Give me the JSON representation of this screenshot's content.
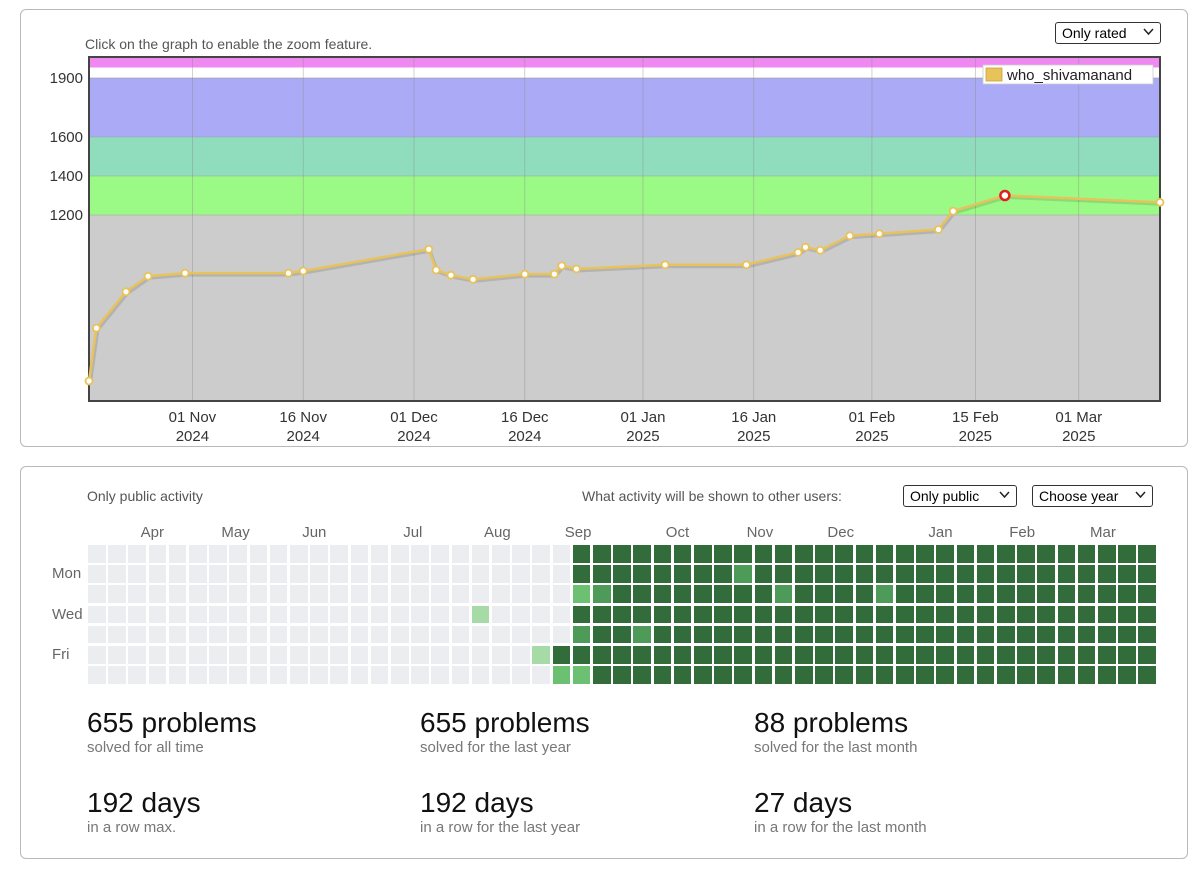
{
  "rating": {
    "hint": "Click on the graph to enable the zoom feature.",
    "filter_select": "Only rated",
    "user": "who_shivamanand",
    "user_color": "#e8c25a"
  },
  "chart_data": {
    "type": "line",
    "series": [
      {
        "name": "who_shivamanand",
        "points": [
          {
            "x": "2024-10-18",
            "y": 400
          },
          {
            "x": "2024-10-19",
            "y": 655
          },
          {
            "x": "2024-10-23",
            "y": 830
          },
          {
            "x": "2024-10-26",
            "y": 905
          },
          {
            "x": "2024-10-31",
            "y": 920
          },
          {
            "x": "2024-11-14",
            "y": 920
          },
          {
            "x": "2024-11-16",
            "y": 930
          },
          {
            "x": "2024-12-03",
            "y": 1035
          },
          {
            "x": "2024-12-04",
            "y": 935
          },
          {
            "x": "2024-12-06",
            "y": 910
          },
          {
            "x": "2024-12-09",
            "y": 890
          },
          {
            "x": "2024-12-16",
            "y": 915
          },
          {
            "x": "2024-12-20",
            "y": 915
          },
          {
            "x": "2024-12-21",
            "y": 955
          },
          {
            "x": "2024-12-23",
            "y": 940
          },
          {
            "x": "2025-01-04",
            "y": 960
          },
          {
            "x": "2025-01-15",
            "y": 960
          },
          {
            "x": "2025-01-22",
            "y": 1020
          },
          {
            "x": "2025-01-23",
            "y": 1045
          },
          {
            "x": "2025-01-25",
            "y": 1030
          },
          {
            "x": "2025-01-29",
            "y": 1100
          },
          {
            "x": "2025-02-02",
            "y": 1110
          },
          {
            "x": "2025-02-10",
            "y": 1130
          },
          {
            "x": "2025-02-12",
            "y": 1220
          },
          {
            "x": "2025-02-19",
            "y": 1300
          },
          {
            "x": "2025-03-12",
            "y": 1265
          }
        ]
      }
    ],
    "highlight_point": "2025-02-19",
    "xlim": [
      "2024-10-18",
      "2025-03-12"
    ],
    "x_ticks": [
      {
        "x": "2024-11-01",
        "label1": "01 Nov",
        "label2": "2024"
      },
      {
        "x": "2024-11-16",
        "label1": "16 Nov",
        "label2": "2024"
      },
      {
        "x": "2024-12-01",
        "label1": "01 Dec",
        "label2": "2024"
      },
      {
        "x": "2024-12-16",
        "label1": "16 Dec",
        "label2": "2024"
      },
      {
        "x": "2025-01-01",
        "label1": "01 Jan",
        "label2": "2025"
      },
      {
        "x": "2025-01-16",
        "label1": "16 Jan",
        "label2": "2025"
      },
      {
        "x": "2025-02-01",
        "label1": "01 Feb",
        "label2": "2025"
      },
      {
        "x": "2025-02-15",
        "label1": "15 Feb",
        "label2": "2025"
      },
      {
        "x": "2025-03-01",
        "label1": "01 Mar",
        "label2": "2025"
      }
    ],
    "y_ticks": [
      1200,
      1400,
      1600,
      1900
    ],
    "bands": [
      {
        "from": 2000,
        "to": 2100,
        "color": "#ef88f0"
      },
      {
        "from": 1600,
        "to": 1900,
        "color": "#aaaaf6"
      },
      {
        "from": 1400,
        "to": 1600,
        "color": "#8fddbd"
      },
      {
        "from": 1200,
        "to": 1400,
        "color": "#9bfa86"
      },
      {
        "from": 0,
        "to": 1200,
        "color": "#cccccc"
      }
    ],
    "grid": true,
    "legend": "top-right"
  },
  "activity": {
    "label": "Only public activity",
    "visibility_question": "What activity will be shown to other users:",
    "visibility_select": "Only public",
    "year_select": "Choose year",
    "months": [
      {
        "label": "Apr",
        "week": 3
      },
      {
        "label": "May",
        "week": 7
      },
      {
        "label": "Jun",
        "week": 11
      },
      {
        "label": "Jul",
        "week": 16
      },
      {
        "label": "Aug",
        "week": 20
      },
      {
        "label": "Sep",
        "week": 24
      },
      {
        "label": "Oct",
        "week": 29
      },
      {
        "label": "Nov",
        "week": 33
      },
      {
        "label": "Dec",
        "week": 37
      },
      {
        "label": "Jan",
        "week": 42
      },
      {
        "label": "Feb",
        "week": 46
      },
      {
        "label": "Mar",
        "week": 50
      }
    ],
    "day_labels": [
      {
        "label": "Mon",
        "row": 1
      },
      {
        "label": "Wed",
        "row": 3
      },
      {
        "label": "Fri",
        "row": 5
      }
    ],
    "weeks": 53,
    "colors": {
      "0": "#ebedf0",
      "1": "#a6dba7",
      "2": "#6cc072",
      "3": "#4d9a59",
      "4": "#326c3b"
    },
    "cells": [
      "000000000000000000000000444444444444444444444444444440",
      "000000000000000000000000444444444444444444444444444440",
      "000000000000000000000000444444444444444444444444444440",
      "000000000000000000000000444444444444444444444444444440",
      "000000000000000000000000444444444444444444444444444440",
      "000000000000000000000000444444444444444444444444444440",
      "000000000000000000000000444444444444444444444444444440"
    ],
    "cell_overrides": [
      {
        "week": 32,
        "row": 1,
        "level": 3
      },
      {
        "week": 24,
        "row": 2,
        "level": 2
      },
      {
        "week": 25,
        "row": 2,
        "level": 3
      },
      {
        "week": 34,
        "row": 2,
        "level": 3
      },
      {
        "week": 39,
        "row": 2,
        "level": 3
      },
      {
        "week": 19,
        "row": 3,
        "level": 1
      },
      {
        "week": 24,
        "row": 4,
        "level": 3
      },
      {
        "week": 27,
        "row": 4,
        "level": 3
      },
      {
        "week": 22,
        "row": 5,
        "level": 1
      },
      {
        "week": 23,
        "row": 5,
        "level": 4
      },
      {
        "week": 23,
        "row": 6,
        "level": 2
      },
      {
        "week": 24,
        "row": 6,
        "level": 2
      }
    ],
    "stats": [
      {
        "value": "655 problems",
        "caption": "solved for all time"
      },
      {
        "value": "655 problems",
        "caption": "solved for the last year"
      },
      {
        "value": "88 problems",
        "caption": "solved for the last month"
      },
      {
        "value": "192 days",
        "caption": "in a row max."
      },
      {
        "value": "192 days",
        "caption": "in a row for the last year"
      },
      {
        "value": "27 days",
        "caption": "in a row for the last month"
      }
    ]
  }
}
